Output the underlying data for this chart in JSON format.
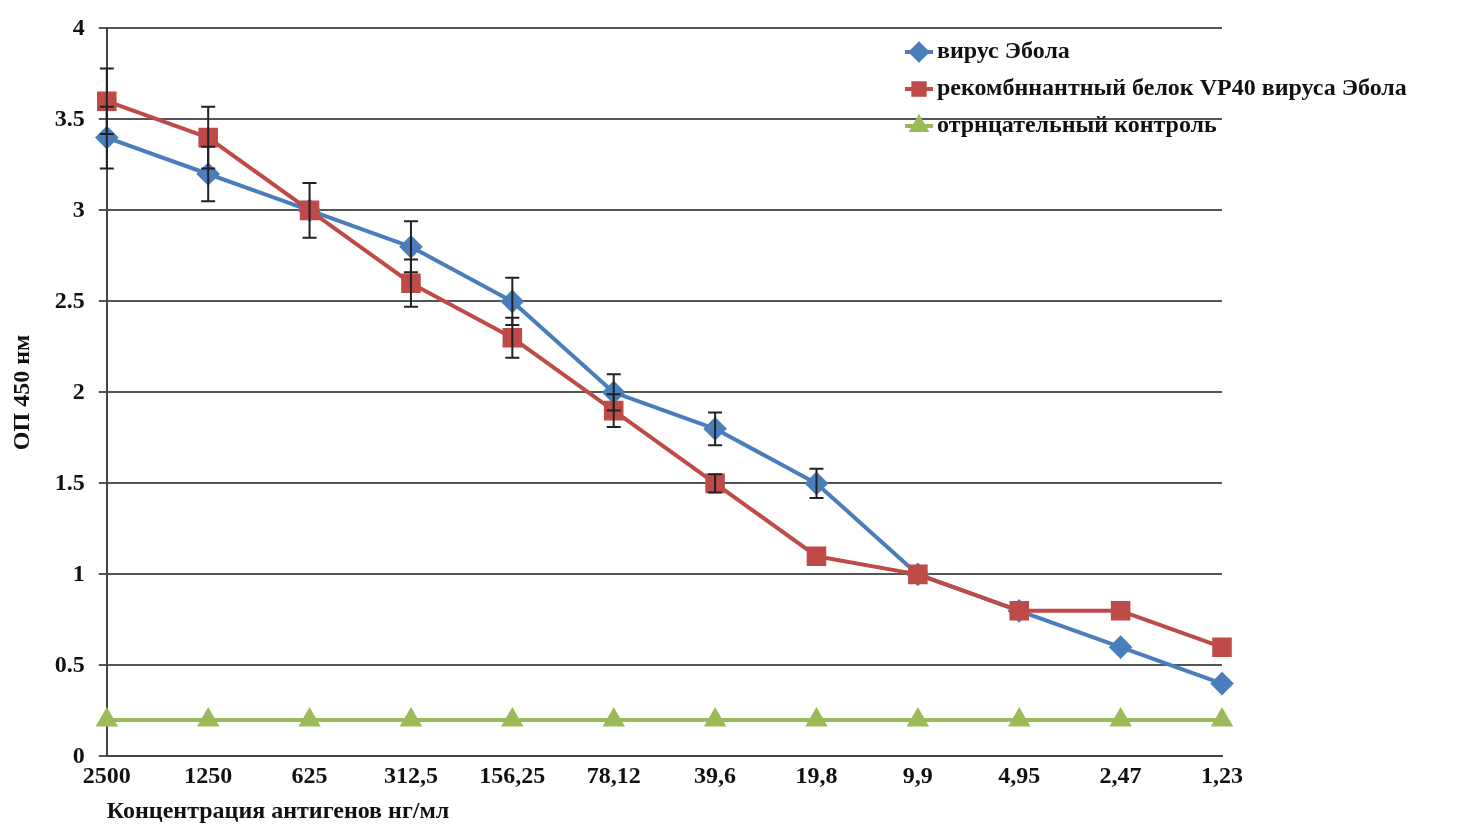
{
  "chart_data": {
    "type": "line",
    "xlabel": "Концентрация антигенов нг/мл",
    "ylabel": "ОП 450 нм",
    "categories": [
      "2500",
      "1250",
      "625",
      "312,5",
      "156,25",
      "78,12",
      "39,6",
      "19,8",
      "9,9",
      "4,95",
      "2,47",
      "1,23"
    ],
    "series": [
      {
        "name": "вирус Эбола",
        "color": "#4a7ebb",
        "marker": "diamond",
        "values": [
          3.4,
          3.2,
          3.0,
          2.8,
          2.5,
          2.0,
          1.8,
          1.5,
          1.0,
          0.8,
          0.6,
          0.4
        ],
        "errors": [
          0.17,
          0.15,
          0.15,
          0.14,
          0.13,
          0.1,
          0.09,
          0.08,
          null,
          null,
          null,
          null
        ]
      },
      {
        "name": "рекомбннантный белок VP40 вируса Эбола",
        "color": "#be4b48",
        "marker": "square",
        "values": [
          3.6,
          3.4,
          3.0,
          2.6,
          2.3,
          1.9,
          1.5,
          1.1,
          1.0,
          0.8,
          0.8,
          0.6
        ],
        "errors": [
          0.18,
          0.17,
          null,
          0.13,
          0.11,
          0.09,
          0.05,
          null,
          null,
          null,
          null,
          null
        ]
      },
      {
        "name": "отрнцательный контроль",
        "color": "#9bbb59",
        "marker": "triangle",
        "values": [
          0.2,
          0.2,
          0.2,
          0.2,
          0.2,
          0.2,
          0.2,
          0.2,
          0.2,
          0.2,
          0.2,
          0.2
        ]
      }
    ],
    "ylim": [
      0,
      4
    ],
    "yticks": [
      0,
      0.5,
      1,
      1.5,
      2,
      2.5,
      3,
      3.5,
      4
    ],
    "grid": "y",
    "legend": "top right",
    "line_style": "solid"
  }
}
